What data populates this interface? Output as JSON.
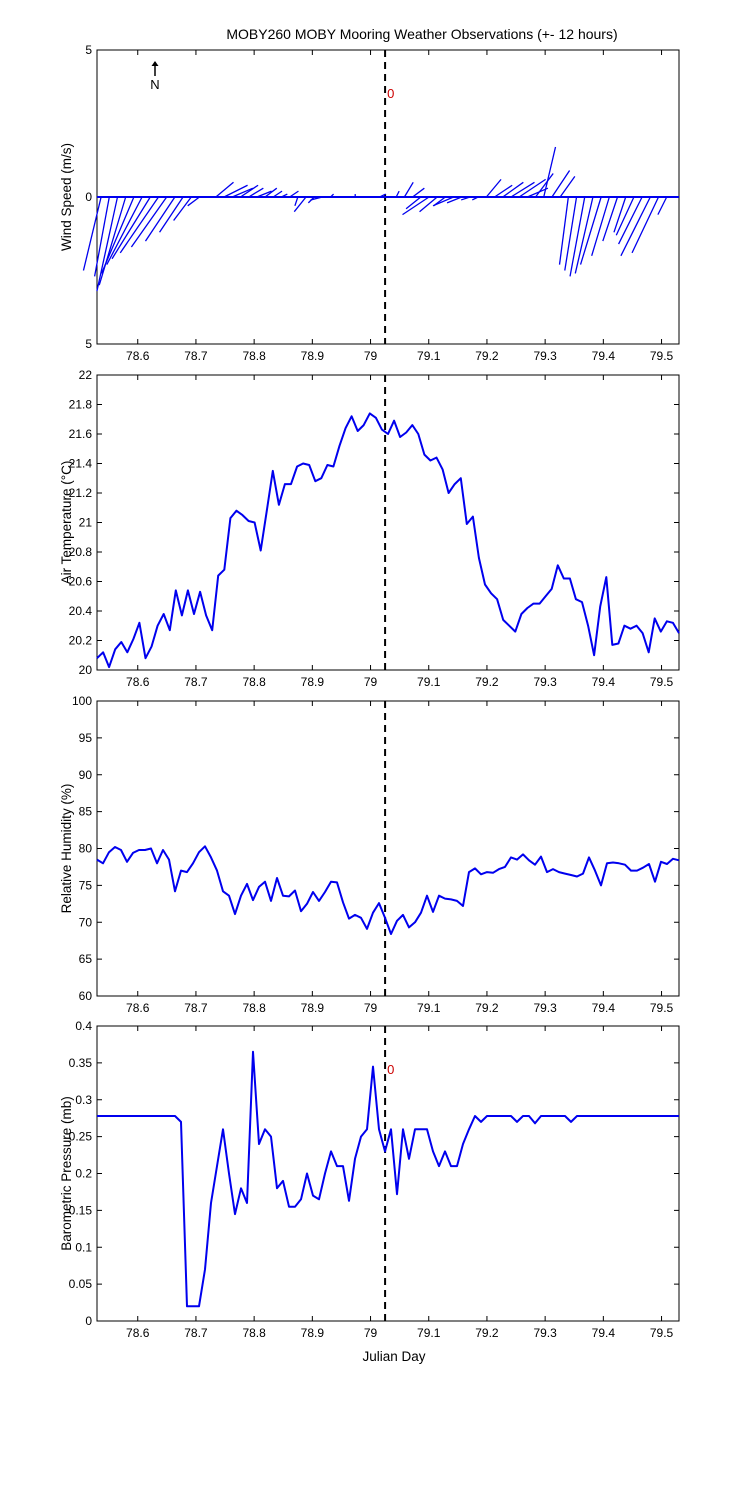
{
  "figure": {
    "title": "MOBY260 MOBY Mooring Weather Observations (+- 12 hours)",
    "xlabel": "Julian Day",
    "north_label": "N",
    "marker_label": "0",
    "marker_x": 79.025
  },
  "colors": {
    "series": "#0000ee",
    "marker_text": "#cc0000",
    "axis": "#000000"
  },
  "chart_data": [
    {
      "type": "line",
      "subtype": "wind-stick",
      "ylabel": "Wind Speed (m/s)",
      "xlim": [
        78.53,
        79.53
      ],
      "ylim": [
        -5,
        5
      ],
      "yticks": [
        -5,
        0,
        5
      ],
      "ytick_labels": [
        "5",
        "0",
        "5"
      ],
      "xticks": [
        78.6,
        78.7,
        78.8,
        78.9,
        79,
        79.1,
        79.2,
        79.3,
        79.4,
        79.5
      ],
      "xtick_labels": [
        "78.6",
        "78.7",
        "78.8",
        "78.9",
        "79",
        "79.1",
        "79.2",
        "79.3",
        "79.4",
        "79.5"
      ],
      "vline_x": 79.025,
      "marker_label": "0",
      "u": [
        -0.6,
        -0.5,
        -0.7,
        -0.9,
        -1.1,
        -1.2,
        -1.3,
        -1.3,
        -1.2,
        -1.0,
        -0.8,
        -0.6,
        -0.4,
        -0.2,
        0.6,
        0.8,
        0.7,
        0.6,
        0.5,
        0.5,
        0.4,
        0.3,
        0.2,
        0.3,
        -0.1,
        -0.4,
        -0.2,
        -0.4,
        0.1,
        0.2,
        0.1,
        0.0,
        -0.1,
        0.1,
        0.2,
        0.1,
        0.1,
        0.3,
        0.4,
        -0.5,
        -0.9,
        -0.6,
        -0.4,
        -0.7,
        -0.5,
        -0.3,
        -0.2,
        0.5,
        0.6,
        0.7,
        0.8,
        0.9,
        0.7,
        0.6,
        0.4,
        0.6,
        0.5,
        -0.3,
        -0.4,
        -0.5,
        -0.6,
        -0.7,
        -0.6,
        -0.5,
        -0.4,
        -0.6,
        -0.8,
        -1.0,
        -0.9,
        -0.3,
        0.0
      ],
      "v": [
        -2.5,
        -2.7,
        -3.2,
        -3.0,
        -2.6,
        -2.3,
        -2.1,
        -1.9,
        -1.7,
        -1.5,
        -1.2,
        -0.8,
        -0.3,
        0.0,
        0.5,
        0.4,
        0.3,
        0.4,
        0.3,
        0.2,
        0.3,
        0.2,
        0.1,
        0.2,
        -0.3,
        -0.5,
        -0.2,
        -0.1,
        0.1,
        0.0,
        0.0,
        0.1,
        0.0,
        0.0,
        0.1,
        0.0,
        0.2,
        0.5,
        0.3,
        -0.4,
        -0.6,
        -0.5,
        -0.3,
        -0.3,
        -0.2,
        -0.1,
        -0.1,
        0.6,
        0.4,
        0.5,
        0.5,
        0.6,
        0.3,
        0.8,
        1.7,
        0.9,
        0.7,
        -2.3,
        -2.5,
        -2.7,
        -2.6,
        -2.3,
        -2.0,
        -1.5,
        -1.2,
        -1.3,
        -1.6,
        -2.0,
        -1.9,
        -0.6,
        0.0
      ]
    },
    {
      "type": "line",
      "ylabel": "Air Temperature (°C)",
      "xlim": [
        78.53,
        79.53
      ],
      "ylim": [
        20,
        22
      ],
      "yticks": [
        20,
        20.2,
        20.4,
        20.6,
        20.8,
        21,
        21.2,
        21.4,
        21.6,
        21.8,
        22
      ],
      "ytick_labels": [
        "20",
        "20.2",
        "20.4",
        "20.6",
        "20.8",
        "21",
        "21.2",
        "21.4",
        "21.6",
        "21.8",
        "22"
      ],
      "xticks": [
        78.6,
        78.7,
        78.8,
        78.9,
        79,
        79.1,
        79.2,
        79.3,
        79.4,
        79.5
      ],
      "xtick_labels": [
        "78.6",
        "78.7",
        "78.8",
        "78.9",
        "79",
        "79.1",
        "79.2",
        "79.3",
        "79.4",
        "79.5"
      ],
      "vline_x": 79.025,
      "values": [
        20.08,
        20.12,
        20.02,
        20.14,
        20.19,
        20.12,
        20.21,
        20.32,
        20.08,
        20.16,
        20.3,
        20.38,
        20.27,
        20.54,
        20.37,
        20.54,
        20.38,
        20.53,
        20.37,
        20.27,
        20.64,
        20.68,
        21.03,
        21.08,
        21.05,
        21.01,
        21.0,
        20.81,
        21.08,
        21.35,
        21.12,
        21.26,
        21.26,
        21.38,
        21.4,
        21.39,
        21.28,
        21.3,
        21.39,
        21.38,
        21.52,
        21.64,
        21.72,
        21.62,
        21.66,
        21.74,
        21.71,
        21.63,
        21.6,
        21.69,
        21.58,
        21.61,
        21.66,
        21.6,
        21.46,
        21.42,
        21.44,
        21.36,
        21.2,
        21.26,
        21.3,
        20.99,
        21.04,
        20.76,
        20.58,
        20.52,
        20.48,
        20.34,
        20.3,
        20.26,
        20.38,
        20.42,
        20.45,
        20.45,
        20.5,
        20.55,
        20.71,
        20.62,
        20.62,
        20.48,
        20.46,
        20.3,
        20.1,
        20.43,
        20.63,
        20.17,
        20.18,
        20.3,
        20.28,
        20.3,
        20.25,
        20.12,
        20.35,
        20.26,
        20.33,
        20.32,
        20.25
      ]
    },
    {
      "type": "line",
      "ylabel": "Relative Humidity (%)",
      "xlim": [
        78.53,
        79.53
      ],
      "ylim": [
        60,
        100
      ],
      "yticks": [
        60,
        65,
        70,
        75,
        80,
        85,
        90,
        95,
        100
      ],
      "ytick_labels": [
        "60",
        "65",
        "70",
        "75",
        "80",
        "85",
        "90",
        "95",
        "100"
      ],
      "xticks": [
        78.6,
        78.7,
        78.8,
        78.9,
        79,
        79.1,
        79.2,
        79.3,
        79.4,
        79.5
      ],
      "xtick_labels": [
        "78.6",
        "78.7",
        "78.8",
        "78.9",
        "79",
        "79.1",
        "79.2",
        "79.3",
        "79.4",
        "79.5"
      ],
      "vline_x": 79.025,
      "values": [
        78.5,
        78.0,
        79.5,
        80.2,
        79.8,
        78.2,
        79.4,
        79.8,
        79.8,
        80.0,
        78.0,
        79.8,
        78.5,
        74.2,
        77.0,
        76.8,
        78.0,
        79.5,
        80.3,
        78.8,
        77.0,
        74.2,
        73.6,
        71.1,
        73.6,
        75.2,
        73.0,
        74.8,
        75.5,
        72.9,
        76.0,
        73.6,
        73.5,
        74.3,
        71.5,
        72.5,
        74.1,
        72.9,
        74.1,
        75.5,
        75.4,
        72.7,
        70.5,
        71.0,
        70.6,
        69.1,
        71.3,
        72.6,
        70.6,
        68.4,
        70.2,
        71.0,
        69.3,
        70.0,
        71.3,
        73.6,
        71.4,
        73.6,
        73.2,
        73.1,
        72.9,
        72.2,
        76.8,
        77.3,
        76.5,
        76.8,
        76.7,
        77.2,
        77.5,
        78.8,
        78.5,
        79.2,
        78.4,
        77.8,
        78.9,
        76.8,
        77.2,
        76.8,
        76.6,
        76.4,
        76.2,
        76.6,
        78.8,
        77.0,
        75.0,
        78.0,
        78.1,
        78.0,
        77.8,
        77.0,
        77.0,
        77.4,
        77.9,
        75.5,
        78.2,
        77.9,
        78.6,
        78.4
      ]
    },
    {
      "type": "line",
      "ylabel": "Barometric Pressure (mb)",
      "xlim": [
        78.53,
        79.53
      ],
      "ylim": [
        0,
        0.4
      ],
      "yticks": [
        0,
        0.05,
        0.1,
        0.15,
        0.2,
        0.25,
        0.3,
        0.35,
        0.4
      ],
      "ytick_labels": [
        "0",
        "0.05",
        "0.1",
        "0.15",
        "0.2",
        "0.25",
        "0.3",
        "0.35",
        "0.4"
      ],
      "xticks": [
        78.6,
        78.7,
        78.8,
        78.9,
        79,
        79.1,
        79.2,
        79.3,
        79.4,
        79.5
      ],
      "xtick_labels": [
        "78.6",
        "78.7",
        "78.8",
        "78.9",
        "79",
        "79.1",
        "79.2",
        "79.3",
        "79.4",
        "79.5"
      ],
      "vline_x": 79.025,
      "marker_label": "0",
      "values": [
        0.278,
        0.278,
        0.278,
        0.278,
        0.278,
        0.278,
        0.278,
        0.278,
        0.278,
        0.278,
        0.278,
        0.278,
        0.278,
        0.278,
        0.27,
        0.02,
        0.02,
        0.02,
        0.07,
        0.16,
        0.21,
        0.26,
        0.2,
        0.145,
        0.18,
        0.16,
        0.365,
        0.24,
        0.26,
        0.25,
        0.18,
        0.19,
        0.155,
        0.155,
        0.165,
        0.2,
        0.17,
        0.165,
        0.2,
        0.23,
        0.21,
        0.21,
        0.163,
        0.22,
        0.25,
        0.26,
        0.345,
        0.26,
        0.23,
        0.26,
        0.172,
        0.26,
        0.22,
        0.26,
        0.26,
        0.26,
        0.23,
        0.21,
        0.23,
        0.21,
        0.21,
        0.24,
        0.26,
        0.278,
        0.27,
        0.278,
        0.278,
        0.278,
        0.278,
        0.278,
        0.27,
        0.278,
        0.278,
        0.268,
        0.278,
        0.278,
        0.278,
        0.278,
        0.278,
        0.27,
        0.278,
        0.278,
        0.278,
        0.278,
        0.278,
        0.278,
        0.278,
        0.278,
        0.278,
        0.278,
        0.278,
        0.278,
        0.278,
        0.278,
        0.278,
        0.278,
        0.278,
        0.278
      ]
    }
  ]
}
